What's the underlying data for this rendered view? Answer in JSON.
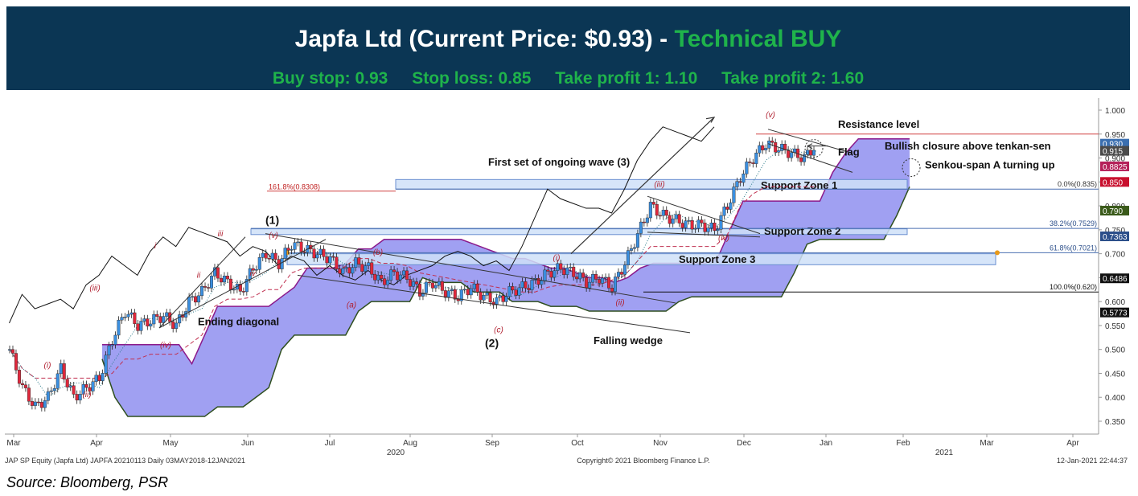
{
  "header": {
    "title_prefix": "Japfa Ltd (Current Price: $0.93) - ",
    "title_rating": "Technical BUY",
    "buy_stop": "Buy stop: 0.93",
    "stop_loss": "Stop loss: 0.85",
    "take_profit_1": "Take profit 1: 1.10",
    "take_profit_2": "Take profit 2: 1.60"
  },
  "source": "Source: Bloomberg, PSR",
  "colors": {
    "banner": "#0b3654",
    "buy_green": "#1fb34b",
    "up_candle": "#3b8fe0",
    "down_candle": "#e0283c",
    "cloud": "#8f8ff0",
    "zone": "#cfe0f8"
  },
  "chart_data": {
    "type": "candlestick",
    "ylim": [
      0.32,
      1.02
    ],
    "yticks": [
      "1.000",
      "0.950",
      "0.900",
      "0.850",
      "0.800",
      "0.750",
      "0.700",
      "0.650",
      "0.600",
      "0.550",
      "0.500",
      "0.450",
      "0.400",
      "0.350"
    ],
    "x_months": [
      "Mar",
      "Apr",
      "May",
      "Jun",
      "Jul",
      "Aug",
      "Sep",
      "Oct",
      "Nov",
      "Dec",
      "Jan",
      "Feb",
      "Mar",
      "Apr"
    ],
    "x_years": [
      "2020",
      "2021"
    ],
    "footer_left": "JAP SP Equity (Japfa Ltd) JAPFA 20210113  Daily 03MAY2018-12JAN2021",
    "footer_center": "Copyright© 2021 Bloomberg Finance L.P.",
    "footer_right": "12-Jan-2021 22:44:37",
    "close_path": [
      0.5,
      0.42,
      0.38,
      0.4,
      0.46,
      0.4,
      0.42,
      0.44,
      0.52,
      0.58,
      0.55,
      0.56,
      0.57,
      0.55,
      0.6,
      0.62,
      0.66,
      0.64,
      0.62,
      0.67,
      0.7,
      0.68,
      0.72,
      0.71,
      0.7,
      0.69,
      0.66,
      0.68,
      0.67,
      0.64,
      0.66,
      0.65,
      0.62,
      0.64,
      0.62,
      0.61,
      0.63,
      0.61,
      0.6,
      0.62,
      0.63,
      0.64,
      0.66,
      0.67,
      0.66,
      0.64,
      0.65,
      0.63,
      0.68,
      0.74,
      0.8,
      0.78,
      0.77,
      0.76,
      0.76,
      0.75,
      0.8,
      0.86,
      0.9,
      0.93,
      0.92,
      0.91,
      0.9,
      0.93
    ],
    "price_labels": [
      {
        "text": "0.930",
        "value": 0.93,
        "color": "#3b6fb0"
      },
      {
        "text": "0.915",
        "value": 0.915,
        "color": "#4a4a4a"
      },
      {
        "text": "0.8825",
        "value": 0.8825,
        "color": "#b5215a"
      },
      {
        "text": "0.850",
        "value": 0.85,
        "color": "#c8102e"
      },
      {
        "text": "0.790",
        "value": 0.79,
        "color": "#3a5a1a"
      },
      {
        "text": "0.7363",
        "value": 0.7363,
        "color": "#2c4f8a"
      },
      {
        "text": "0.6486",
        "value": 0.6486,
        "color": "#111111"
      },
      {
        "text": "0.5773",
        "value": 0.5773,
        "color": "#111111"
      }
    ],
    "fib_levels": [
      {
        "text": "161.8%(0.8308)",
        "value": 0.8308
      },
      {
        "text": "0.0%(0.835)",
        "value": 0.835
      },
      {
        "text": "38.2%(0.7529)",
        "value": 0.7529
      },
      {
        "text": "61.8%(0.7021)",
        "value": 0.7021
      },
      {
        "text": "100.0%(0.620)",
        "value": 0.62
      }
    ],
    "zones": [
      {
        "label": "Support Zone 1",
        "low": 0.835,
        "high": 0.855
      },
      {
        "label": "Support Zone 2",
        "low": 0.74,
        "high": 0.752
      },
      {
        "label": "Support Zone 3",
        "low": 0.677,
        "high": 0.7
      }
    ],
    "annotations": {
      "resistance": "Resistance level",
      "bullish": "Bullish closure above tenkan-sen",
      "flag": "Flag",
      "senkou": "Senkou-span A turning up",
      "first_wave": "First set of ongoing wave (3)",
      "ending_diagonal": "Ending diagonal",
      "falling_wedge": "Falling wedge",
      "wave_1": "(1)",
      "wave_2": "(2)",
      "w_v_top": "(v)",
      "w_iii_nov": "(iii)",
      "w_iv_nov": "(iv)",
      "w_i_oct": "(i)",
      "w_ii_oct": "(ii)",
      "w_b": "(b)",
      "w_a": "(a)",
      "w_c": "(c)",
      "w_v_jun": "(v)",
      "w_iii_mar": "(iii)",
      "w_i_mar": "(i)",
      "w_ii_mar": "(ii)",
      "w_iv_may": "(iv)",
      "w_iii_may": "iii",
      "w_i_may": "i",
      "w_ii_may": "ii",
      "w_iv_jun": "iv"
    }
  }
}
